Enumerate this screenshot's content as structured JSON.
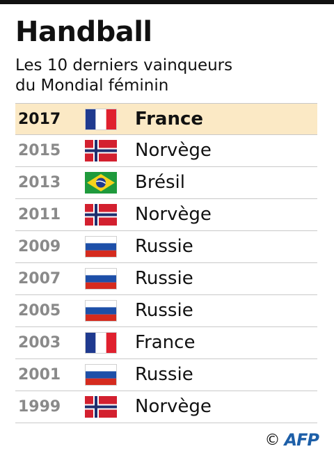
{
  "title": "Handball",
  "subtitle_line1": "Les 10 derniers vainqueurs",
  "subtitle_line2": "du Mondial féminin",
  "winners": [
    {
      "year": "2017",
      "country": "France",
      "flag": "france-flag-icon"
    },
    {
      "year": "2015",
      "country": "Norvège",
      "flag": "norway-flag-icon"
    },
    {
      "year": "2013",
      "country": "Brésil",
      "flag": "brazil-flag-icon"
    },
    {
      "year": "2011",
      "country": "Norvège",
      "flag": "norway-flag-icon"
    },
    {
      "year": "2009",
      "country": "Russie",
      "flag": "russia-flag-icon"
    },
    {
      "year": "2007",
      "country": "Russie",
      "flag": "russia-flag-icon"
    },
    {
      "year": "2005",
      "country": "Russie",
      "flag": "russia-flag-icon"
    },
    {
      "year": "2003",
      "country": "France",
      "flag": "france-flag-icon"
    },
    {
      "year": "2001",
      "country": "Russie",
      "flag": "russia-flag-icon"
    },
    {
      "year": "1999",
      "country": "Norvège",
      "flag": "norway-flag-icon"
    }
  ],
  "colors": {
    "highlight": "#fbe9c5",
    "year_muted": "#8a8a8a",
    "afp_blue": "#1d5fa8"
  },
  "credit": {
    "copyright": "©",
    "agency": "AFP"
  }
}
